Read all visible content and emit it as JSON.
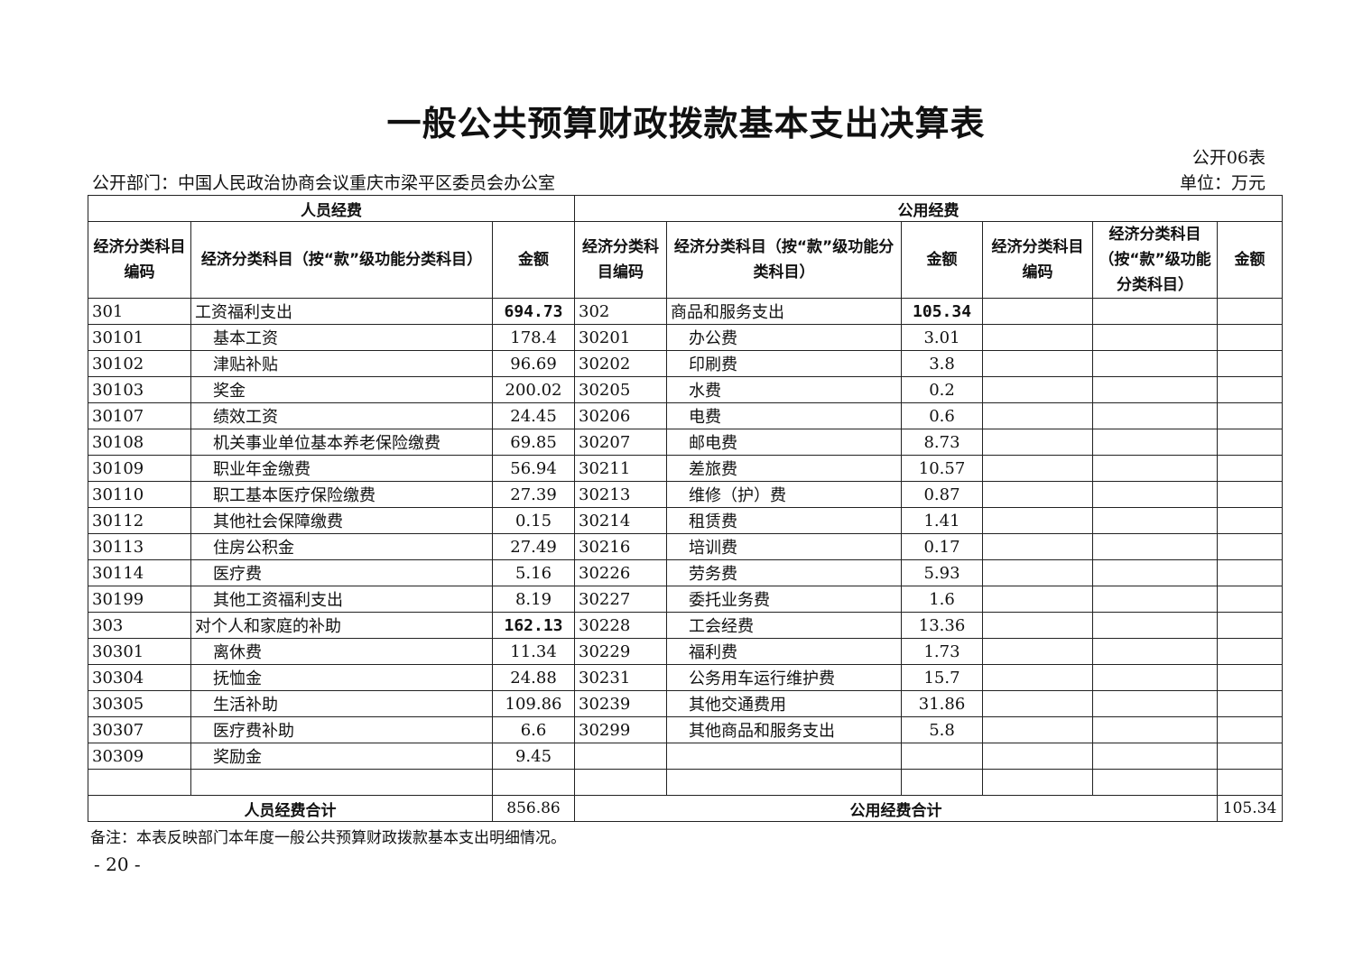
{
  "title": "一般公共预算财政拨款基本支出决算表",
  "table_no": "公开06表",
  "department": "公开部门：中国人民政治协商会议重庆市梁平区委员会办公室",
  "unit": "单位：万元",
  "headers": {
    "personnel": "人员经费",
    "public": "公用经费",
    "code": "经济分类科目编码",
    "code2": "经济分类科目编码",
    "subject": "经济分类科目（按“款”级功能分类科目）",
    "subject2": "经济分类科目（按“款”级功能分类科目）",
    "subject3": "经济分类科目（按“款”级功能分类科目）",
    "amount": "金额",
    "code3": "经济分类科目编码"
  },
  "rows": [
    {
      "c1": "301",
      "s1": "工资福利支出",
      "a1": "694.73",
      "c2": "302",
      "s2": "商品和服务支出",
      "a2": "105.34",
      "top": true
    },
    {
      "c1": "30101",
      "s1": "基本工资",
      "a1": "178.4",
      "c2": "30201",
      "s2": "办公费",
      "a2": "3.01"
    },
    {
      "c1": "30102",
      "s1": "津贴补贴",
      "a1": "96.69",
      "c2": "30202",
      "s2": "印刷费",
      "a2": "3.8"
    },
    {
      "c1": "30103",
      "s1": "奖金",
      "a1": "200.02",
      "c2": "30205",
      "s2": "水费",
      "a2": "0.2"
    },
    {
      "c1": "30107",
      "s1": "绩效工资",
      "a1": "24.45",
      "c2": "30206",
      "s2": "电费",
      "a2": "0.6"
    },
    {
      "c1": "30108",
      "s1": "机关事业单位基本养老保险缴费",
      "a1": "69.85",
      "c2": "30207",
      "s2": "邮电费",
      "a2": "8.73"
    },
    {
      "c1": "30109",
      "s1": "职业年金缴费",
      "a1": "56.94",
      "c2": "30211",
      "s2": "差旅费",
      "a2": "10.57"
    },
    {
      "c1": "30110",
      "s1": "职工基本医疗保险缴费",
      "a1": "27.39",
      "c2": "30213",
      "s2": "维修（护）费",
      "a2": "0.87"
    },
    {
      "c1": "30112",
      "s1": "其他社会保障缴费",
      "a1": "0.15",
      "c2": "30214",
      "s2": "租赁费",
      "a2": "1.41"
    },
    {
      "c1": "30113",
      "s1": "住房公积金",
      "a1": "27.49",
      "c2": "30216",
      "s2": "培训费",
      "a2": "0.17"
    },
    {
      "c1": "30114",
      "s1": "医疗费",
      "a1": "5.16",
      "c2": "30226",
      "s2": "劳务费",
      "a2": "5.93"
    },
    {
      "c1": "30199",
      "s1": "其他工资福利支出",
      "a1": "8.19",
      "c2": "30227",
      "s2": "委托业务费",
      "a2": "1.6"
    },
    {
      "c1": "303",
      "s1": "对个人和家庭的补助",
      "a1": "162.13",
      "c2": "30228",
      "s2": "工会经费",
      "a2": "13.36",
      "top1": true
    },
    {
      "c1": "30301",
      "s1": "离休费",
      "a1": "11.34",
      "c2": "30229",
      "s2": "福利费",
      "a2": "1.73"
    },
    {
      "c1": "30304",
      "s1": "抚恤金",
      "a1": "24.88",
      "c2": "30231",
      "s2": "公务用车运行维护费",
      "a2": "15.7"
    },
    {
      "c1": "30305",
      "s1": "生活补助",
      "a1": "109.86",
      "c2": "30239",
      "s2": "其他交通费用",
      "a2": "31.86"
    },
    {
      "c1": "30307",
      "s1": "医疗费补助",
      "a1": "6.6",
      "c2": "30299",
      "s2": "其他商品和服务支出",
      "a2": "5.8"
    },
    {
      "c1": "30309",
      "s1": "奖励金",
      "a1": "9.45",
      "c2": "",
      "s2": "",
      "a2": ""
    },
    {
      "c1": "",
      "s1": "",
      "a1": "",
      "c2": "",
      "s2": "",
      "a2": ""
    }
  ],
  "totals": {
    "personnel_label": "人员经费合计",
    "personnel_value": "856.86",
    "public_label": "公用经费合计",
    "public_value": "105.34"
  },
  "note": "备注：本表反映部门本年度一般公共预算财政拨款基本支出明细情况。",
  "page_number": "- 20 -"
}
